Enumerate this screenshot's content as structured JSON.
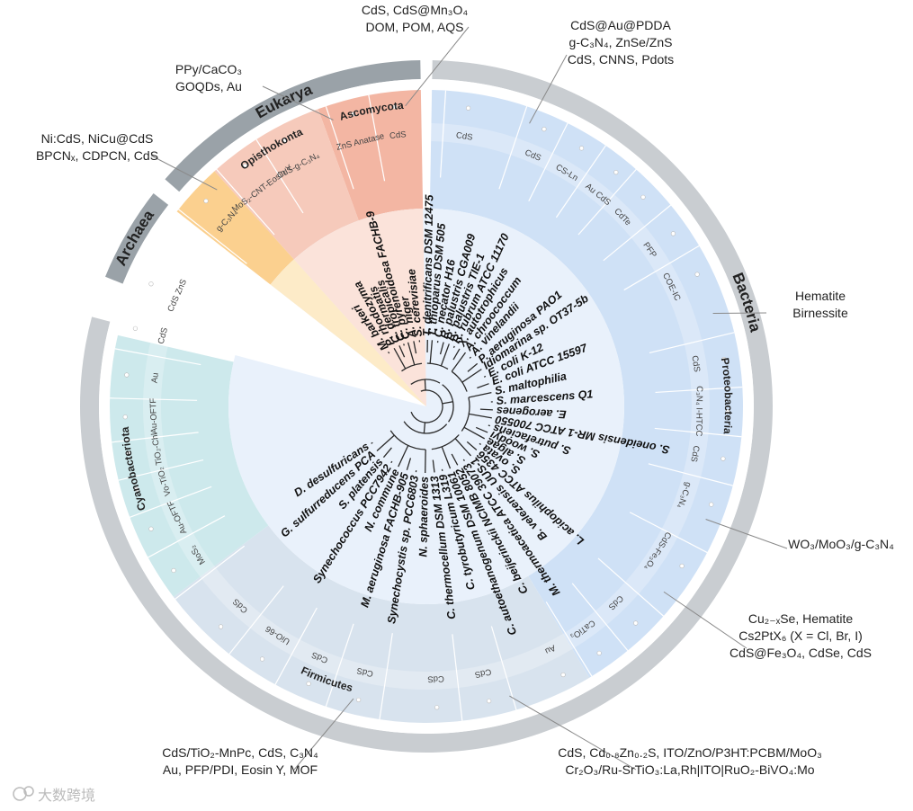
{
  "domains": [
    {
      "name": "Archaea",
      "a0": -68,
      "a1": -52,
      "color": "#9aa2a8"
    },
    {
      "name": "Eukarya",
      "a0": -49,
      "a1": -1,
      "color": "#9aa2a8"
    },
    {
      "name": "Bacteria",
      "a0": 1,
      "a1": 285,
      "color": "#c9cdd1"
    }
  ],
  "phyla": [
    {
      "name": "Ascomycota",
      "a0": -20,
      "a1": -1,
      "color": "#f3b6a3",
      "label": "Ascomycota"
    },
    {
      "name": "Opisthokonta",
      "a0": -42,
      "a1": -20,
      "color": "#f6cabb",
      "label": "Opisthokonta"
    },
    {
      "name": "Euryarchaeota",
      "a0": -52,
      "a1": -42,
      "color": "#fbd08f",
      "label": ""
    },
    {
      "name": "Proteobacteria",
      "a0": 1,
      "a1": 149,
      "color": "#cfe1f6",
      "label": "Proteobacteria"
    },
    {
      "name": "Firmicutes",
      "a0": 149,
      "a1": 233,
      "color": "#d8e3ee",
      "label": "Firmicutes"
    },
    {
      "name": "Cyanobacteriota",
      "a0": 233,
      "a1": 283,
      "color": "#cde9ec",
      "label": "Cyanobacteriota"
    }
  ],
  "materials": [
    {
      "text": "ZnS Anatase",
      "angle": -14
    },
    {
      "text": "CdS",
      "angle": -6
    },
    {
      "text": "CdS-g-C3N4",
      "angle": -28
    },
    {
      "text": "MoS2-CNT-Eosin Y",
      "angle": -37
    },
    {
      "text": "g-C3N4",
      "angle": -47
    },
    {
      "text": "CdS",
      "angle": 8
    },
    {
      "text": "CdS",
      "angle": 23
    },
    {
      "text": "CS-Ln",
      "angle": 31
    },
    {
      "text": "Au CdS",
      "angle": 39
    },
    {
      "text": "CdTe",
      "angle": 46
    },
    {
      "text": "PFP",
      "angle": 55
    },
    {
      "text": "COE-IC",
      "angle": 64
    },
    {
      "text": "CdS",
      "angle": 81
    },
    {
      "text": "C3N4 I-HTCC",
      "angle": 91
    },
    {
      "text": "CdS",
      "angle": 100
    },
    {
      "text": "g-C3N4",
      "angle": 109
    },
    {
      "text": "CdS-Fe3O4",
      "angle": 122
    },
    {
      "text": "CdS",
      "angle": 136
    },
    {
      "text": "CaTiO3",
      "angle": 145
    },
    {
      "text": "Au",
      "angle": 153
    },
    {
      "text": "CdS",
      "angle": 168
    },
    {
      "text": "CdS",
      "angle": 178
    },
    {
      "text": "CdS",
      "angle": 193
    },
    {
      "text": "CdS",
      "angle": 203
    },
    {
      "text": "UiO-66",
      "angle": 213
    },
    {
      "text": "CdS",
      "angle": 223
    },
    {
      "text": "MoS2",
      "angle": 237
    },
    {
      "text": "Au-OFTF",
      "angle": 246
    },
    {
      "text": "Vo-TiO2",
      "angle": 254
    },
    {
      "text": "TiO2-Chl",
      "angle": 261
    },
    {
      "text": "Au-OFTF",
      "angle": 268
    },
    {
      "text": "Au",
      "angle": 276
    },
    {
      "text": "CdS",
      "angle": 285
    },
    {
      "text": "CdS ZnS",
      "angle": 294
    }
  ],
  "species": [
    {
      "name": "S. cerevisiae",
      "angle": -6
    },
    {
      "name": "A. niger",
      "angle": -11
    },
    {
      "name": "C. pyrenoidosa FACHB-9",
      "angle": -16
    },
    {
      "name": "C. tropicalis",
      "angle": -20
    },
    {
      "name": "C. dermatis",
      "angle": -24
    },
    {
      "name": "P. rhodozyma",
      "angle": -29
    },
    {
      "name": "M. barkeri",
      "angle": -35
    },
    {
      "name": "T. denitrificans DSM 12475",
      "angle": 1
    },
    {
      "name": "T. thioparus DSM 505",
      "angle": 5
    },
    {
      "name": "C. necator H16",
      "angle": 10
    },
    {
      "name": "R. palustris CGA009",
      "angle": 15
    },
    {
      "name": "R. palustris TIE-1",
      "angle": 20
    },
    {
      "name": "R. rubrum ATCC 11170",
      "angle": 25
    },
    {
      "name": "X. autotrophicus",
      "angle": 30
    },
    {
      "name": "A. chroococcum",
      "angle": 36
    },
    {
      "name": "A. vinelandii",
      "angle": 42
    },
    {
      "name": "P. aeruginosa PAO1",
      "angle": 50
    },
    {
      "name": "Idiomarina sp. OT37-5b",
      "angle": 56
    },
    {
      "name": "E. coli K-12",
      "angle": 63
    },
    {
      "name": "E. coli ATCC 15597",
      "angle": 70
    },
    {
      "name": "S. maltophilia",
      "angle": 78
    },
    {
      "name": "S. marcescens Q1",
      "angle": 86
    },
    {
      "name": "E. aerogenes",
      "angle": 93
    },
    {
      "name": "S. oneidensis MR-1 ATCC 700550",
      "angle": 100
    },
    {
      "name": "S. putrefaciens",
      "angle": 107
    },
    {
      "name": "S. woodyi",
      "angle": 113
    },
    {
      "name": "S. algae",
      "angle": 119
    },
    {
      "name": "S. ovata",
      "angle": 125
    },
    {
      "name": "L. acidophilus ATCC 4356",
      "angle": 131
    },
    {
      "name": "B. velezensis UUS-1",
      "angle": 138
    },
    {
      "name": "M. thermoacetica ATCC 39073",
      "angle": 145
    },
    {
      "name": "C. beijerinckii NCIMB 8052",
      "angle": 152
    },
    {
      "name": "C. autoethanogenum DSM 10061",
      "angle": 159
    },
    {
      "name": "C. tyrobutyricum L319",
      "angle": 166
    },
    {
      "name": "C. thermocellum DSM 1313",
      "angle": 173
    },
    {
      "name": "N. sphaeroides",
      "angle": 181
    },
    {
      "name": "Synechocystis sp. PCC6803",
      "angle": 189
    },
    {
      "name": "M. aeruginosa FACHB-905",
      "angle": 197
    },
    {
      "name": "N. commune",
      "angle": 205
    },
    {
      "name": "Synechococcus PCC7942",
      "angle": 212
    },
    {
      "name": "S. platensis",
      "angle": 220
    },
    {
      "name": "G. sulfurreducens PCA",
      "angle": 228
    },
    {
      "name": "D. desulfuricans",
      "angle": 236
    }
  ],
  "callouts": [
    {
      "lines": [
        "CdS, CdS@Mn3O4",
        "DOM, POM, AQS"
      ],
      "angle": -4
    },
    {
      "lines": [
        "PPy/CaCO3",
        "GOQDs, Au"
      ],
      "angle": -18
    },
    {
      "lines": [
        "Ni:CdS, NiCu@CdS",
        "BPCNx, CDPCN, CdS"
      ],
      "angle": -44
    },
    {
      "lines": [
        "CdS@Au@PDDA",
        "g-C3N4, ZnSe/ZnS",
        "CdS, CNNS,  Pdots"
      ],
      "angle": 20
    },
    {
      "lines": [
        "Hematite",
        "Birnessite"
      ],
      "angle": 72
    },
    {
      "lines": [
        "WO3/MoO3/g-C3N4"
      ],
      "angle": 112
    },
    {
      "lines": [
        "Cu2-xSe, Hematite",
        "Cs2PtX6 (X = Cl, Br, I)",
        "CdS@Fe3O4, CdSe, CdS"
      ],
      "angle": 128
    },
    {
      "lines": [
        "CdS, Cd0.8Zn0.2S, ITO/ZnO/P3HT:PCBM/MoO3",
        "Cr2O3/Ru-SrTiO3:La,Rh|ITO|RuO2-BiVO4:Mo"
      ],
      "angle": 164
    },
    {
      "lines": [
        "CdS/TiO2-MnPc, CdS, C3N4",
        "Au, PFP/PDI, Eosin Y, MOF"
      ],
      "angle": 194
    }
  ],
  "watermark": "大数跨境"
}
